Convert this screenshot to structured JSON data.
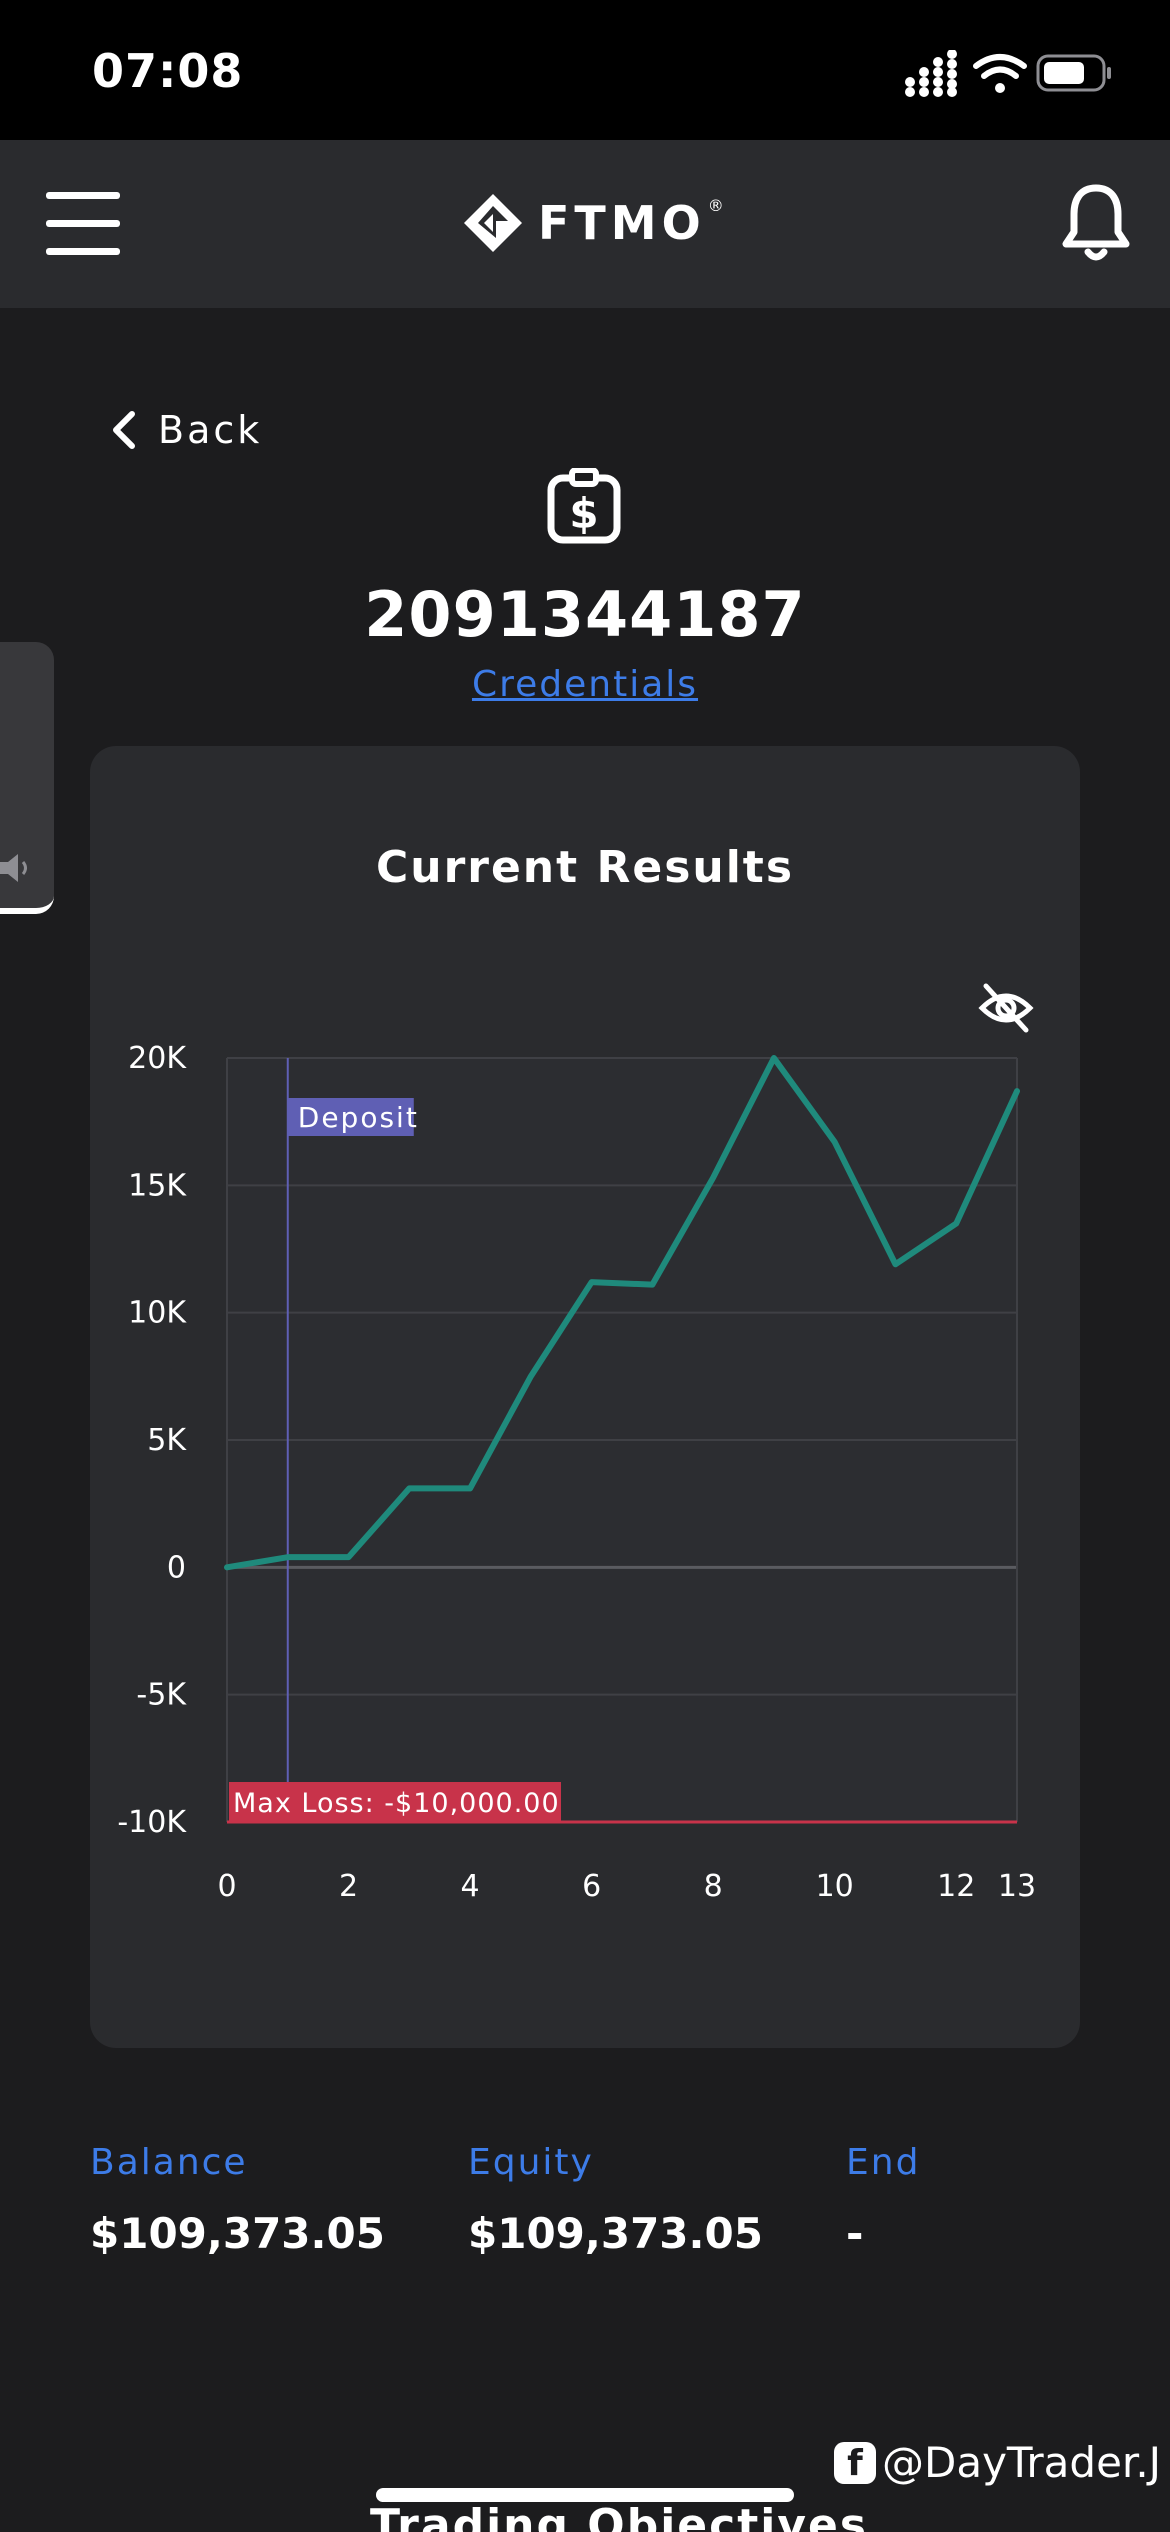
{
  "status_bar": {
    "time": "07:08"
  },
  "header": {
    "logo_text": "FTMO",
    "logo_mark": "®"
  },
  "nav": {
    "back_label": "Back"
  },
  "account": {
    "number": "2091344187",
    "credentials_link": "Credentials"
  },
  "card": {
    "title": "Current Results"
  },
  "chart_data": {
    "type": "line",
    "title": "Current Results",
    "x": [
      0,
      1,
      2,
      3,
      4,
      5,
      6,
      7,
      8,
      9,
      10,
      11,
      12,
      13
    ],
    "series": [
      {
        "values": [
          0,
          400,
          400,
          3100,
          3100,
          7500,
          11200,
          11100,
          15300,
          20000,
          16700,
          11900,
          13500,
          18700
        ]
      }
    ],
    "x_ticks": [
      "0",
      "2",
      "4",
      "6",
      "8",
      "10",
      "12",
      "13"
    ],
    "y_ticks": [
      "20K",
      "15K",
      "10K",
      "5K",
      "0",
      "-5K",
      "-10K"
    ],
    "ylim": [
      -10000,
      20000
    ],
    "xlim": [
      0,
      13
    ],
    "annotations": [
      {
        "type": "vertical-line",
        "x": 1,
        "label": "Deposit",
        "color": "#5f5fb4"
      },
      {
        "type": "horizontal-line",
        "y": -10000,
        "label": "Max Loss: -$10,000.00",
        "color": "#c8334a"
      }
    ],
    "grid": true,
    "line_color": "#1f8a7c"
  },
  "stats": {
    "balance_label": "Balance",
    "balance_value": "$109,373.05",
    "equity_label": "Equity",
    "equity_value": "$109,373.05",
    "end_label": "End",
    "end_value": "-"
  },
  "watermark": {
    "text": "@DayTrader.J"
  },
  "next_section": {
    "title": "Trading Objectives"
  }
}
